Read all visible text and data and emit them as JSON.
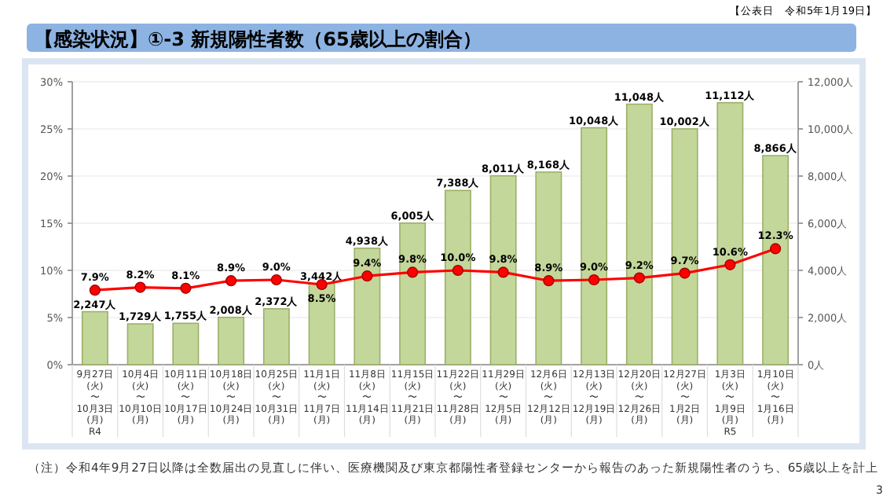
{
  "chart_data": {
    "type": "bar",
    "title": "【感染状況】①-3 新規陽性者数（65歳以上の割合）",
    "categories": [
      "9月27日\n(火)\n〜\n10月3日\n(月)\nR4",
      "10月4日\n(火)\n〜\n10月10日\n(月)",
      "10月11日\n(火)\n〜\n10月17日\n(月)",
      "10月18日\n(火)\n〜\n10月24日\n(月)",
      "10月25日\n(火)\n〜\n10月31日\n(月)",
      "11月1日\n(火)\n〜\n11月7日\n(月)",
      "11月8日\n(火)\n〜\n11月14日\n(月)",
      "11月15日\n(火)\n〜\n11月21日\n(月)",
      "11月22日\n(火)\n〜\n11月28日\n(月)",
      "11月29日\n(火)\n〜\n12月5日\n(月)",
      "12月6日\n(火)\n〜\n12月12日\n(月)",
      "12月13日\n(火)\n〜\n12月19日\n(月)",
      "12月20日\n(火)\n〜\n12月26日\n(月)",
      "12月27日\n(火)\n〜\n1月2日\n(月)",
      "1月3日\n(火)\n〜\n1月9日\n(月)\nR5",
      "1月10日\n(火)\n〜\n1月16日\n(月)"
    ],
    "series": [
      {
        "axis": "y2",
        "color": "#c4d79b",
        "values": [
          2247,
          1729,
          1755,
          2008,
          2372,
          3442,
          4938,
          6005,
          7388,
          8011,
          8168,
          10048,
          11048,
          10002,
          11112,
          8866
        ],
        "value_labels": [
          "2,247人",
          "1,729人",
          "1,755人",
          "2,008人",
          "2,372人",
          "3,442人",
          "4,938人",
          "6,005人",
          "7,388人",
          "8,011人",
          "8,168人",
          "10,048人",
          "11,048人",
          "10,002人",
          "11,112人",
          "8,866人"
        ]
      },
      {
        "type": "line",
        "axis": "y",
        "color": "#ff0000",
        "marker": "circle",
        "values": [
          7.9,
          8.2,
          8.1,
          8.9,
          9.0,
          8.5,
          9.4,
          9.8,
          10.0,
          9.8,
          8.9,
          9.0,
          9.2,
          9.7,
          10.6,
          12.3
        ],
        "value_labels": [
          "7.9%",
          "8.2%",
          "8.1%",
          "8.9%",
          "9.0%",
          "8.5%",
          "9.4%",
          "9.8%",
          "10.0%",
          "9.8%",
          "8.9%",
          "9.0%",
          "9.2%",
          "9.7%",
          "10.6%",
          "12.3%"
        ]
      }
    ],
    "ylim": [
      0,
      30
    ],
    "yticks": [
      {
        "value": 0,
        "label": "0%"
      },
      {
        "value": 5,
        "label": "5%"
      },
      {
        "value": 10,
        "label": "10%"
      },
      {
        "value": 15,
        "label": "15%"
      },
      {
        "value": 20,
        "label": "20%"
      },
      {
        "value": 25,
        "label": "25%"
      },
      {
        "value": 30,
        "label": "30%"
      }
    ],
    "y2lim": [
      0,
      12000
    ],
    "y2ticks": [
      {
        "value": 0,
        "label": "0人"
      },
      {
        "value": 2000,
        "label": "2,000人"
      },
      {
        "value": 4000,
        "label": "4,000人"
      },
      {
        "value": 6000,
        "label": "6,000人"
      },
      {
        "value": 8000,
        "label": "8,000人"
      },
      {
        "value": 10000,
        "label": "10,000人"
      },
      {
        "value": 12000,
        "label": "12,000人"
      }
    ],
    "grid": "y",
    "annotations": [
      "【公表日　令和5年1月19日】",
      "（注）令和4年9月27日以降は全数届出の見直しに伴い、医療機関及び東京都陽性者登録センターから報告のあった新規陽性者のうち、65歳以上を計上",
      "3"
    ]
  }
}
